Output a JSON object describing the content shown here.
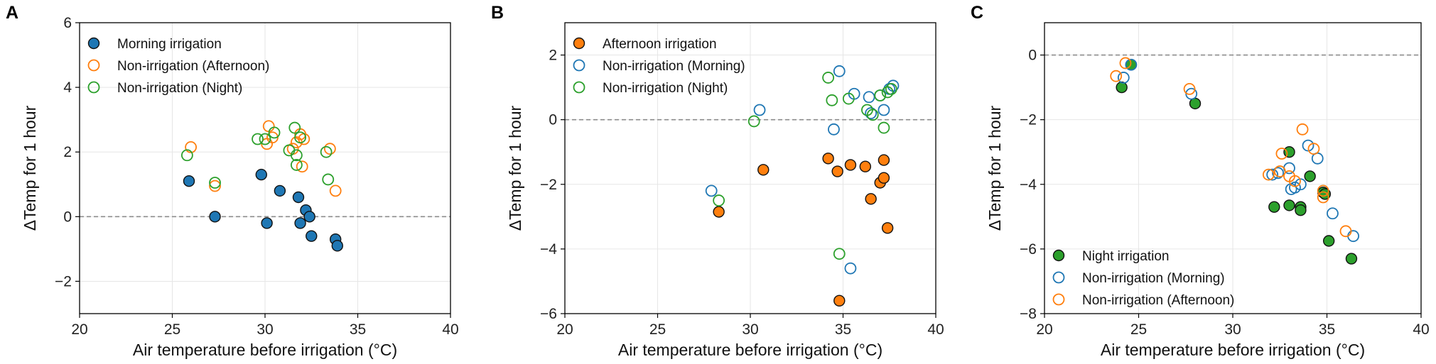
{
  "colors": {
    "blue": "#1f77b4",
    "orange": "#ff7f0e",
    "green": "#2ca02c",
    "grid": "#e6e6e6",
    "zero_line": "#8c8c8c"
  },
  "chart_data": [
    {
      "type": "scatter",
      "panel_label": "A",
      "xlabel": "Air temperature before irrigation (°C)",
      "ylabel": "ΔTemp for 1 hour",
      "xlim": [
        20,
        40
      ],
      "ylim": [
        -3,
        6
      ],
      "xticks": [
        20,
        25,
        30,
        35,
        40
      ],
      "yticks": [
        -2,
        0,
        2,
        4,
        6
      ],
      "grid": true,
      "reference_line_y": 0,
      "legend_position": "top-left",
      "series": [
        {
          "name": "Morning irrigation",
          "marker": "filled",
          "color": "#1f77b4",
          "x": [
            25.9,
            27.3,
            29.8,
            30.1,
            30.8,
            31.8,
            31.9,
            32.2,
            32.4,
            32.5,
            33.8,
            33.9
          ],
          "y": [
            1.1,
            0.0,
            1.3,
            -0.2,
            0.8,
            0.6,
            -0.2,
            0.2,
            0.0,
            -0.6,
            -0.7,
            -0.9
          ]
        },
        {
          "name": "Non-irrigation (Afternoon)",
          "marker": "open",
          "color": "#ff7f0e",
          "x": [
            26.0,
            27.3,
            30.1,
            30.2,
            30.4,
            31.5,
            31.7,
            31.9,
            32.0,
            32.1,
            33.5,
            33.8
          ],
          "y": [
            2.15,
            0.95,
            2.25,
            2.8,
            2.45,
            2.1,
            2.3,
            2.55,
            1.55,
            2.4,
            2.1,
            0.8
          ]
        },
        {
          "name": "Non-irrigation (Night)",
          "marker": "open",
          "color": "#2ca02c",
          "x": [
            25.8,
            27.3,
            29.6,
            30.0,
            30.5,
            31.3,
            31.6,
            31.7,
            31.7,
            31.9,
            33.3,
            33.4
          ],
          "y": [
            1.9,
            1.05,
            2.4,
            2.4,
            2.6,
            2.05,
            2.75,
            1.6,
            1.9,
            2.45,
            2.0,
            1.15
          ]
        }
      ]
    },
    {
      "type": "scatter",
      "panel_label": "B",
      "xlabel": "Air temperature before irrigation (°C)",
      "ylabel": "ΔTemp for 1 hour",
      "xlim": [
        20,
        40
      ],
      "ylim": [
        -6,
        3
      ],
      "xticks": [
        20,
        25,
        30,
        35,
        40
      ],
      "yticks": [
        -6,
        -4,
        -2,
        0,
        2
      ],
      "grid": true,
      "reference_line_y": 0,
      "legend_position": "top-left",
      "series": [
        {
          "name": "Afternoon irrigation",
          "marker": "filled",
          "color": "#ff7f0e",
          "x": [
            28.3,
            30.7,
            34.2,
            34.7,
            34.8,
            35.4,
            36.2,
            36.5,
            37.0,
            37.2,
            37.2,
            37.4
          ],
          "y": [
            -2.85,
            -1.55,
            -1.2,
            -1.6,
            -5.6,
            -1.4,
            -1.45,
            -2.45,
            -1.95,
            -1.8,
            -1.25,
            -3.35
          ]
        },
        {
          "name": "Non-irrigation (Morning)",
          "marker": "open",
          "color": "#1f77b4",
          "x": [
            27.9,
            30.5,
            34.5,
            34.8,
            35.4,
            35.6,
            36.4,
            36.5,
            37.0,
            37.2,
            37.5,
            37.7
          ],
          "y": [
            -2.2,
            0.3,
            -0.3,
            1.5,
            -4.6,
            0.8,
            0.7,
            0.2,
            0.75,
            0.3,
            0.95,
            1.05
          ]
        },
        {
          "name": "Non-irrigation (Night)",
          "marker": "open",
          "color": "#2ca02c",
          "x": [
            28.3,
            30.2,
            34.2,
            34.4,
            34.8,
            35.3,
            36.3,
            36.6,
            37.0,
            37.2,
            37.4,
            37.6
          ],
          "y": [
            -2.5,
            -0.05,
            1.3,
            0.6,
            -4.15,
            0.65,
            0.3,
            0.15,
            0.75,
            -0.25,
            0.85,
            0.95
          ]
        }
      ]
    },
    {
      "type": "scatter",
      "panel_label": "C",
      "xlabel": "Air temperature before irrigation (°C)",
      "ylabel": "ΔTemp for 1 hour",
      "xlim": [
        20,
        40
      ],
      "ylim": [
        -8,
        1
      ],
      "xticks": [
        20,
        25,
        30,
        35,
        40
      ],
      "yticks": [
        -8,
        -6,
        -4,
        -2,
        0
      ],
      "grid": true,
      "reference_line_y": 0,
      "legend_position": "bottom-left",
      "series": [
        {
          "name": "Night irrigation",
          "marker": "filled",
          "color": "#2ca02c",
          "x": [
            24.1,
            24.6,
            28.0,
            32.2,
            33.0,
            33.0,
            33.6,
            33.6,
            34.1,
            34.8,
            34.9,
            35.1,
            36.3
          ],
          "y": [
            -1.0,
            -0.3,
            -1.5,
            -4.7,
            -4.65,
            -3.0,
            -4.7,
            -4.8,
            -3.75,
            -4.25,
            -4.3,
            -5.75,
            -6.3
          ]
        },
        {
          "name": "Non-irrigation (Morning)",
          "marker": "open",
          "color": "#1f77b4",
          "x": [
            24.2,
            24.6,
            27.8,
            32.1,
            32.4,
            33.0,
            33.1,
            33.3,
            33.6,
            34.0,
            34.5,
            35.3,
            36.4
          ],
          "y": [
            -0.7,
            -0.3,
            -1.2,
            -3.7,
            -3.65,
            -3.5,
            -4.15,
            -4.1,
            -4.0,
            -2.8,
            -3.2,
            -4.9,
            -5.6
          ]
        },
        {
          "name": "Non-irrigation (Afternoon)",
          "marker": "open",
          "color": "#ff7f0e",
          "x": [
            23.8,
            24.3,
            27.7,
            31.9,
            32.5,
            32.6,
            33.0,
            33.3,
            33.7,
            34.3,
            34.8,
            34.8,
            36.0
          ],
          "y": [
            -0.65,
            -0.25,
            -1.05,
            -3.7,
            -3.6,
            -3.05,
            -3.75,
            -3.9,
            -2.3,
            -2.9,
            -4.2,
            -4.4,
            -5.45
          ]
        }
      ]
    }
  ]
}
